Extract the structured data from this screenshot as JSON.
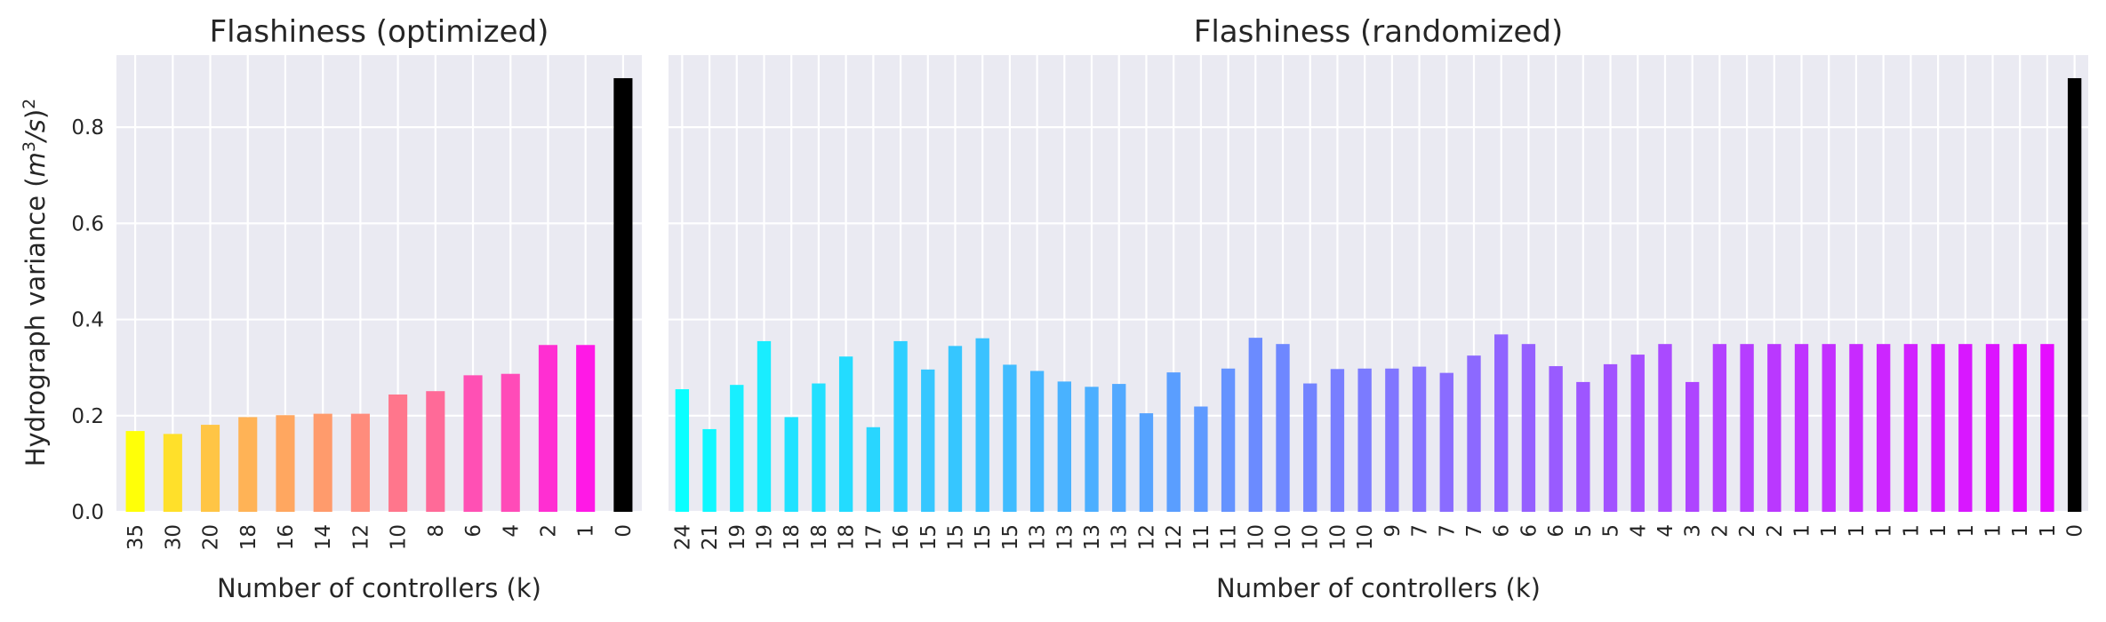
{
  "ylabel": "Hydrograph variance ($m^3/s)^2$",
  "chart_data": [
    {
      "type": "bar",
      "title": "Flashiness (optimized)",
      "xlabel": "Number of controllers (k)",
      "ylabel": "Hydrograph variance ($m^3/s)^2$",
      "ylim": [
        0,
        0.95
      ],
      "yticks": [
        "0.0",
        "0.2",
        "0.4",
        "0.6",
        "0.8"
      ],
      "grid": true,
      "categories": [
        "35",
        "30",
        "20",
        "18",
        "16",
        "14",
        "12",
        "10",
        "8",
        "6",
        "4",
        "2",
        "1",
        "0"
      ],
      "values": [
        0.168,
        0.162,
        0.181,
        0.197,
        0.201,
        0.204,
        0.204,
        0.244,
        0.251,
        0.284,
        0.287,
        0.347,
        0.347,
        0.902
      ],
      "colors": [
        "#ffff08",
        "#ffe02a",
        "#ffc545",
        "#ffb356",
        "#ffa760",
        "#ff9b6c",
        "#ff8c7c",
        "#ff768c",
        "#ff6a98",
        "#ff50b4",
        "#ff4bb8",
        "#ff2fd2",
        "#ff19e6",
        "#000000"
      ]
    },
    {
      "type": "bar",
      "title": "Flashiness (randomized)",
      "xlabel": "Number of controllers (k)",
      "ylim": [
        0,
        0.95
      ],
      "grid": true,
      "categories": [
        "24",
        "21",
        "19",
        "19",
        "18",
        "18",
        "18",
        "17",
        "16",
        "15",
        "15",
        "15",
        "15",
        "13",
        "13",
        "13",
        "13",
        "12",
        "12",
        "11",
        "11",
        "10",
        "10",
        "10",
        "10",
        "10",
        "9",
        "7",
        "7",
        "7",
        "6",
        "6",
        "6",
        "5",
        "5",
        "4",
        "4",
        "3",
        "2",
        "2",
        "2",
        "1",
        "1",
        "1",
        "1",
        "1",
        "1",
        "1",
        "1",
        "1",
        "1",
        "0"
      ],
      "values": [
        0.255,
        0.172,
        0.264,
        0.355,
        0.197,
        0.267,
        0.323,
        0.176,
        0.355,
        0.296,
        0.345,
        0.361,
        0.306,
        0.293,
        0.271,
        0.26,
        0.266,
        0.205,
        0.29,
        0.219,
        0.298,
        0.362,
        0.349,
        0.267,
        0.297,
        0.298,
        0.298,
        0.302,
        0.289,
        0.325,
        0.369,
        0.349,
        0.303,
        0.27,
        0.307,
        0.327,
        0.349,
        0.27,
        0.349,
        0.349,
        0.349,
        0.349,
        0.349,
        0.349,
        0.349,
        0.349,
        0.349,
        0.349,
        0.349,
        0.349,
        0.349,
        0.902
      ],
      "colors": [
        "#0affff",
        "#10f8ff",
        "#18efff",
        "#19edff",
        "#20e2ff",
        "#22e0ff",
        "#23dcff",
        "#29d6ff",
        "#2ecfff",
        "#36c7ff",
        "#36c6ff",
        "#3ac2ff",
        "#40bcff",
        "#45b6ff",
        "#49b2ff",
        "#4cafff",
        "#52a9ff",
        "#56a3ff",
        "#5a9eff",
        "#5f9aff",
        "#6593ff",
        "#6b8bff",
        "#6e87ff",
        "#7283ff",
        "#787eff",
        "#7b7bff",
        "#8176ff",
        "#8572ff",
        "#8a6cff",
        "#8c69ff",
        "#9064ff",
        "#955fff",
        "#995bff",
        "#9e56ff",
        "#a252ff",
        "#a64eff",
        "#aa4aff",
        "#ae45ff",
        "#b340ff",
        "#b63dff",
        "#ba38ff",
        "#bf33ff",
        "#c32fff",
        "#c82aff",
        "#cc26ff",
        "#d121ff",
        "#d41dff",
        "#d818ff",
        "#dc14ff",
        "#e111ff",
        "#e50dff",
        "#000000"
      ]
    }
  ]
}
